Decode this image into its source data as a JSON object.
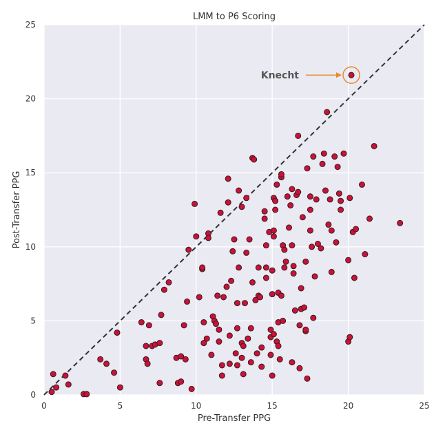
{
  "chart_data": {
    "type": "scatter",
    "title": "LMM to P6 Scoring",
    "xlabel": "Pre-Transfer PPG",
    "ylabel": "Post-Transfer PPG",
    "xlim": [
      0,
      25
    ],
    "ylim": [
      0,
      25
    ],
    "xticks": [
      "0",
      "5",
      "10",
      "15",
      "20",
      "25"
    ],
    "yticks": [
      "0",
      "5",
      "10",
      "15",
      "20",
      "25"
    ],
    "grid": true,
    "reference_line": "y = x",
    "colors": {
      "background": "#eaeaf2",
      "grid": "#ffffff",
      "point_fill": "#c8123c",
      "point_edge": "#3a1a1a",
      "reference_line": "#333333",
      "annotation": "#e8892b"
    },
    "annotation": {
      "text": "Knecht",
      "x": 20.2,
      "y": 21.6
    },
    "points": [
      [
        0.5,
        0.2
      ],
      [
        0.6,
        1.4
      ],
      [
        0.8,
        0.5
      ],
      [
        1.4,
        1.3
      ],
      [
        1.6,
        0.7
      ],
      [
        2.6,
        0.05
      ],
      [
        2.8,
        0.05
      ],
      [
        3.7,
        2.4
      ],
      [
        4.1,
        2.1
      ],
      [
        4.6,
        1.5
      ],
      [
        4.8,
        4.2
      ],
      [
        5.0,
        0.5
      ],
      [
        6.4,
        4.9
      ],
      [
        6.7,
        3.3
      ],
      [
        6.7,
        2.4
      ],
      [
        6.8,
        2.1
      ],
      [
        6.9,
        4.7
      ],
      [
        7.1,
        3.3
      ],
      [
        7.3,
        3.4
      ],
      [
        7.6,
        3.5
      ],
      [
        7.6,
        0.8
      ],
      [
        7.7,
        5.4
      ],
      [
        7.9,
        7.1
      ],
      [
        8.2,
        7.6
      ],
      [
        8.7,
        2.5
      ],
      [
        8.8,
        0.8
      ],
      [
        9.0,
        2.6
      ],
      [
        9.0,
        0.9
      ],
      [
        9.2,
        4.7
      ],
      [
        9.3,
        2.4
      ],
      [
        9.4,
        6.3
      ],
      [
        9.5,
        9.8
      ],
      [
        9.7,
        0.4
      ],
      [
        9.9,
        12.9
      ],
      [
        10.0,
        10.7
      ],
      [
        10.2,
        6.6
      ],
      [
        10.4,
        8.5
      ],
      [
        10.4,
        8.6
      ],
      [
        10.5,
        3.5
      ],
      [
        10.5,
        4.9
      ],
      [
        10.7,
        3.8
      ],
      [
        10.8,
        10.9
      ],
      [
        10.8,
        10.6
      ],
      [
        11.0,
        2.7
      ],
      [
        11.1,
        5.3
      ],
      [
        11.2,
        5.0
      ],
      [
        11.3,
        4.8
      ],
      [
        11.4,
        6.7
      ],
      [
        11.5,
        4.4
      ],
      [
        11.5,
        3.6
      ],
      [
        11.6,
        12.3
      ],
      [
        11.7,
        2.0
      ],
      [
        11.7,
        1.3
      ],
      [
        11.8,
        6.6
      ],
      [
        12.0,
        7.3
      ],
      [
        12.1,
        14.6
      ],
      [
        12.1,
        13.0
      ],
      [
        12.2,
        4.0
      ],
      [
        12.2,
        2.1
      ],
      [
        12.3,
        7.7
      ],
      [
        12.4,
        9.7
      ],
      [
        12.5,
        10.5
      ],
      [
        12.6,
        2.8
      ],
      [
        12.7,
        4.5
      ],
      [
        12.7,
        2.0
      ],
      [
        12.7,
        6.2
      ],
      [
        12.8,
        13.8
      ],
      [
        12.8,
        8.6
      ],
      [
        13.0,
        3.5
      ],
      [
        13.0,
        2.5
      ],
      [
        13.0,
        12.7
      ],
      [
        13.1,
        1.4
      ],
      [
        13.1,
        3.3
      ],
      [
        13.2,
        6.2
      ],
      [
        13.3,
        13.3
      ],
      [
        13.3,
        9.6
      ],
      [
        13.4,
        3.8
      ],
      [
        13.5,
        10.5
      ],
      [
        13.6,
        4.5
      ],
      [
        13.6,
        2.2
      ],
      [
        13.7,
        7.6
      ],
      [
        13.7,
        16.0
      ],
      [
        13.8,
        15.9
      ],
      [
        13.9,
        6.4
      ],
      [
        14.0,
        2.8
      ],
      [
        14.1,
        6.7
      ],
      [
        14.1,
        8.6
      ],
      [
        14.2,
        6.6
      ],
      [
        14.3,
        3.2
      ],
      [
        14.3,
        1.9
      ],
      [
        14.5,
        12.4
      ],
      [
        14.5,
        11.9
      ],
      [
        14.6,
        10.1
      ],
      [
        14.6,
        8.6
      ],
      [
        14.6,
        7.9
      ],
      [
        14.8,
        11.0
      ],
      [
        14.9,
        3.9
      ],
      [
        14.9,
        4.4
      ],
      [
        14.9,
        2.7
      ],
      [
        15.0,
        1.3
      ],
      [
        15.0,
        6.8
      ],
      [
        15.0,
        8.4
      ],
      [
        15.1,
        4.1
      ],
      [
        15.1,
        10.7
      ],
      [
        15.1,
        13.3
      ],
      [
        15.1,
        11.1
      ],
      [
        15.2,
        13.1
      ],
      [
        15.2,
        12.5
      ],
      [
        15.3,
        14.2
      ],
      [
        15.3,
        3.6
      ],
      [
        15.4,
        6.9
      ],
      [
        15.4,
        4.9
      ],
      [
        15.4,
        3.3
      ],
      [
        15.5,
        2.4
      ],
      [
        15.6,
        14.7
      ],
      [
        15.6,
        14.9
      ],
      [
        15.6,
        6.7
      ],
      [
        15.7,
        10.1
      ],
      [
        15.7,
        5.0
      ],
      [
        15.8,
        9.8
      ],
      [
        15.8,
        8.6
      ],
      [
        15.9,
        9.0
      ],
      [
        16.0,
        13.4
      ],
      [
        16.1,
        11.3
      ],
      [
        16.2,
        12.8
      ],
      [
        16.3,
        13.9
      ],
      [
        16.3,
        10.1
      ],
      [
        16.3,
        2.2
      ],
      [
        16.4,
        8.7
      ],
      [
        16.4,
        8.2
      ],
      [
        16.5,
        5.7
      ],
      [
        16.6,
        13.5
      ],
      [
        16.7,
        17.5
      ],
      [
        16.7,
        13.7
      ],
      [
        16.8,
        4.7
      ],
      [
        16.8,
        1.8
      ],
      [
        16.9,
        7.2
      ],
      [
        16.9,
        5.8
      ],
      [
        17.0,
        12.0
      ],
      [
        17.1,
        5.9
      ],
      [
        17.2,
        4.3
      ],
      [
        17.2,
        9.0
      ],
      [
        17.2,
        4.4
      ],
      [
        17.3,
        15.3
      ],
      [
        17.3,
        1.1
      ],
      [
        17.5,
        13.4
      ],
      [
        17.5,
        12.5
      ],
      [
        17.5,
        11.1
      ],
      [
        17.6,
        10.0
      ],
      [
        17.7,
        16.1
      ],
      [
        17.7,
        5.2
      ],
      [
        17.8,
        8.0
      ],
      [
        17.9,
        13.2
      ],
      [
        18.0,
        10.2
      ],
      [
        18.2,
        9.9
      ],
      [
        18.3,
        15.6
      ],
      [
        18.4,
        16.3
      ],
      [
        18.5,
        13.8
      ],
      [
        18.6,
        19.1
      ],
      [
        18.7,
        11.5
      ],
      [
        18.8,
        13.2
      ],
      [
        18.9,
        11.1
      ],
      [
        18.9,
        8.3
      ],
      [
        19.1,
        16.1
      ],
      [
        19.2,
        10.3
      ],
      [
        19.3,
        15.4
      ],
      [
        19.4,
        13.6
      ],
      [
        19.5,
        12.5
      ],
      [
        19.5,
        13.1
      ],
      [
        19.7,
        16.3
      ],
      [
        20.0,
        3.6
      ],
      [
        20.0,
        9.1
      ],
      [
        20.1,
        13.3
      ],
      [
        20.1,
        3.9
      ],
      [
        20.2,
        21.6
      ],
      [
        20.3,
        11.0
      ],
      [
        20.4,
        7.9
      ],
      [
        20.5,
        11.2
      ],
      [
        20.9,
        14.2
      ],
      [
        21.1,
        9.5
      ],
      [
        21.4,
        11.9
      ],
      [
        21.7,
        16.8
      ],
      [
        23.4,
        11.6
      ]
    ]
  }
}
